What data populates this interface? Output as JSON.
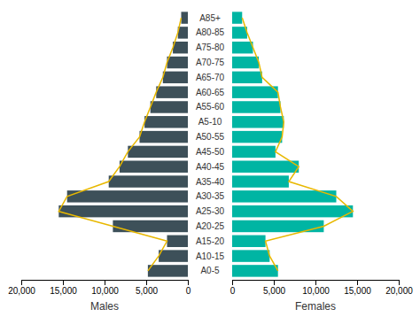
{
  "chart_data": [
    {
      "type": "bar",
      "orientation": "horizontal",
      "categories": [
        "A0-5",
        "A10-15",
        "A15-20",
        "A20-25",
        "A25-30",
        "A30-35",
        "A35-40",
        "A40-45",
        "A45-50",
        "A50-55",
        "A5-10",
        "A55-60",
        "A60-65",
        "A65-70",
        "A70-75",
        "A75-80",
        "A80-85",
        "A85+"
      ],
      "series": [
        {
          "type": "bar",
          "color": "#3d5059",
          "values": [
            4800,
            3500,
            2500,
            9000,
            15500,
            14500,
            9500,
            8200,
            7200,
            5800,
            5200,
            4500,
            3800,
            3000,
            2500,
            1800,
            1200,
            800
          ]
        },
        {
          "type": "line",
          "color": "#e8b800",
          "values": [
            4800,
            3500,
            2500,
            9000,
            15500,
            14500,
            9500,
            8200,
            7200,
            5800,
            5200,
            4500,
            3800,
            3000,
            2500,
            1800,
            1200,
            800
          ]
        }
      ],
      "xlabel": "Males",
      "xlim": [
        20000,
        0
      ],
      "xticks": [
        {
          "value": 20000,
          "label": "20,000"
        },
        {
          "value": 15000,
          "label": "15,000"
        },
        {
          "value": 10000,
          "label": "10,000"
        },
        {
          "value": 5000,
          "label": "5,000"
        },
        0
      ],
      "grid": false
    },
    {
      "type": "bar",
      "orientation": "horizontal",
      "categories": [
        "A0-5",
        "A10-15",
        "A15-20",
        "A20-25",
        "A25-30",
        "A30-35",
        "A35-40",
        "A40-45",
        "A45-50",
        "A50-55",
        "A5-10",
        "A55-60",
        "A60-65",
        "A65-70",
        "A70-75",
        "A75-80",
        "A80-85",
        "A85+"
      ],
      "series": [
        {
          "type": "bar",
          "color": "#00b5a3",
          "values": [
            5500,
            4500,
            4000,
            11000,
            14500,
            12500,
            6800,
            8000,
            5200,
            6000,
            6200,
            5800,
            5500,
            3600,
            3200,
            2500,
            1800,
            1200
          ]
        },
        {
          "type": "line",
          "color": "#e8b800",
          "values": [
            5500,
            4500,
            4000,
            11000,
            14500,
            12500,
            6800,
            8000,
            5200,
            6000,
            6200,
            5800,
            5500,
            3600,
            3200,
            2500,
            1800,
            1200
          ]
        }
      ],
      "xlabel": "Females",
      "xlim": [
        0,
        20000
      ],
      "xticks": [
        0,
        {
          "value": 5000,
          "label": "5,000"
        },
        {
          "value": 10000,
          "label": "10,000"
        },
        {
          "value": 15000,
          "label": "15,000"
        },
        {
          "value": 20000,
          "label": "20,000"
        }
      ],
      "grid": false
    }
  ]
}
